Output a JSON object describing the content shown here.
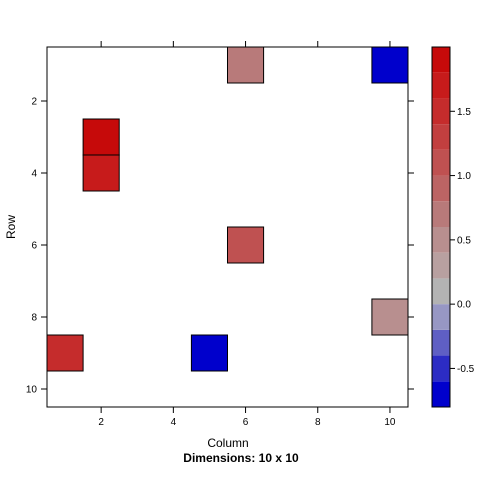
{
  "chart_data": {
    "type": "heatmap",
    "xlabel": "Column",
    "ylabel": "Row",
    "subtitle": "Dimensions: 10 x 10",
    "xlim": [
      0.5,
      10.5
    ],
    "ylim": [
      10.5,
      0.5
    ],
    "x_ticks": [
      2,
      4,
      6,
      8,
      10
    ],
    "y_ticks": [
      2,
      4,
      6,
      8,
      10
    ],
    "cells": [
      {
        "row": 1,
        "col": 6,
        "value": 0.7
      },
      {
        "row": 1,
        "col": 10,
        "value": -0.78
      },
      {
        "row": 3,
        "col": 2,
        "value": 1.85
      },
      {
        "row": 4,
        "col": 2,
        "value": 1.6
      },
      {
        "row": 6,
        "col": 6,
        "value": 1.15
      },
      {
        "row": 8,
        "col": 10,
        "value": 0.5
      },
      {
        "row": 9,
        "col": 1,
        "value": 1.55
      },
      {
        "row": 9,
        "col": 5,
        "value": -0.68
      }
    ],
    "colorkey": {
      "breaks": [
        -0.8,
        -0.6,
        -0.4,
        -0.2,
        0.0,
        0.2,
        0.4,
        0.6,
        0.8,
        1.0,
        1.2,
        1.4,
        1.6,
        1.8,
        2.0
      ],
      "colors": [
        "#0000CC",
        "#2C2CC4",
        "#5F5FC4",
        "#9797C4",
        "#B3B3B3",
        "#B8A0A0",
        "#B88F8F",
        "#B87A7A",
        "#BC6464",
        "#BF5151",
        "#C23F3F",
        "#C52C2C",
        "#C71B1B",
        "#C60A0A"
      ],
      "ticks": [
        -0.5,
        0.0,
        0.5,
        1.0,
        1.5
      ],
      "tick_labels": [
        "-0.5",
        "0.0",
        "0.5",
        "1.0",
        "1.5"
      ]
    },
    "grid": false,
    "legend": "right"
  }
}
